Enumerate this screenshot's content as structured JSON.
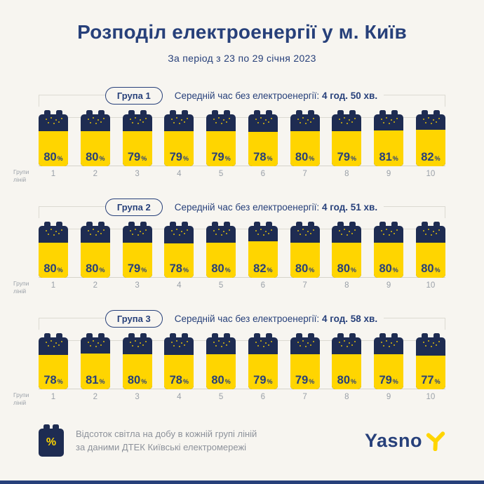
{
  "page": {
    "title": "Розподіл електроенергії у м. Київ",
    "subtitle": "За період з 23 по 29 січня 2023"
  },
  "axis": {
    "label_line1": "Групи",
    "label_line2": "ліній"
  },
  "chart_data": [
    {
      "type": "bar",
      "group_label": "Група 1",
      "avg_label": "Середній час без електроенергії:",
      "avg_value": "4 год. 50 хв.",
      "categories": [
        "1",
        "2",
        "3",
        "4",
        "5",
        "6",
        "7",
        "8",
        "9",
        "10"
      ],
      "values": [
        80,
        80,
        79,
        79,
        79,
        78,
        80,
        79,
        81,
        82
      ],
      "unit": "%",
      "ylim": [
        0,
        100
      ],
      "xlabel": "Групи ліній",
      "ylabel": "Відсоток світла на добу"
    },
    {
      "type": "bar",
      "group_label": "Група 2",
      "avg_label": "Середній час без електроенергії:",
      "avg_value": "4 год. 51 хв.",
      "categories": [
        "1",
        "2",
        "3",
        "4",
        "5",
        "6",
        "7",
        "8",
        "9",
        "10"
      ],
      "values": [
        80,
        80,
        79,
        78,
        80,
        82,
        80,
        80,
        80,
        80
      ],
      "unit": "%",
      "ylim": [
        0,
        100
      ],
      "xlabel": "Групи ліній",
      "ylabel": "Відсоток світла на добу"
    },
    {
      "type": "bar",
      "group_label": "Група 3",
      "avg_label": "Середній час без електроенергії:",
      "avg_value": "4 год. 58 хв.",
      "categories": [
        "1",
        "2",
        "3",
        "4",
        "5",
        "6",
        "7",
        "8",
        "9",
        "10"
      ],
      "values": [
        78,
        81,
        80,
        78,
        80,
        79,
        79,
        80,
        79,
        77
      ],
      "unit": "%",
      "ylim": [
        0,
        100
      ],
      "xlabel": "Групи ліній",
      "ylabel": "Відсоток світла на добу"
    }
  ],
  "footer": {
    "icon_symbol": "%",
    "note_line1": "Відсоток світла на добу в кожній групі ліній",
    "note_line2": "за даними ДТЕК Київські електромережі",
    "logo_text": "Yasno"
  },
  "colors": {
    "navy": "#27407a",
    "battery_navy": "#1e2c52",
    "yellow": "#ffd500",
    "background": "#f7f5f0",
    "gridline": "#dcdad2",
    "gray_text": "#9aa0a8"
  }
}
